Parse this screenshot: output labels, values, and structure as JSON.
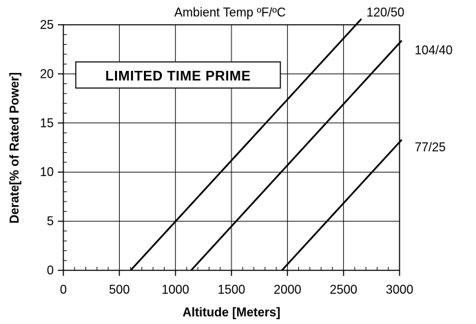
{
  "chart_data": {
    "type": "line",
    "title": "",
    "xlabel": "Altitude [Meters]",
    "ylabel": "Derate[% of Rated Power]",
    "xlim": [
      0,
      3000
    ],
    "ylim": [
      0,
      25
    ],
    "x_ticks": [
      0,
      500,
      1000,
      1500,
      2000,
      2500,
      3000
    ],
    "y_ticks": [
      0,
      5,
      10,
      15,
      20,
      25
    ],
    "grid": true,
    "legend_title": "Ambient Temp ºF/ºC",
    "annotation": "LIMITED TIME PRIME",
    "series": [
      {
        "name": "120/50",
        "points": [
          [
            600,
            0
          ],
          [
            2660,
            25.6
          ]
        ]
      },
      {
        "name": "104/40",
        "points": [
          [
            1140,
            0
          ],
          [
            3020,
            23.4
          ]
        ]
      },
      {
        "name": "77/25",
        "points": [
          [
            1950,
            0
          ],
          [
            3020,
            13.3
          ]
        ]
      }
    ]
  }
}
